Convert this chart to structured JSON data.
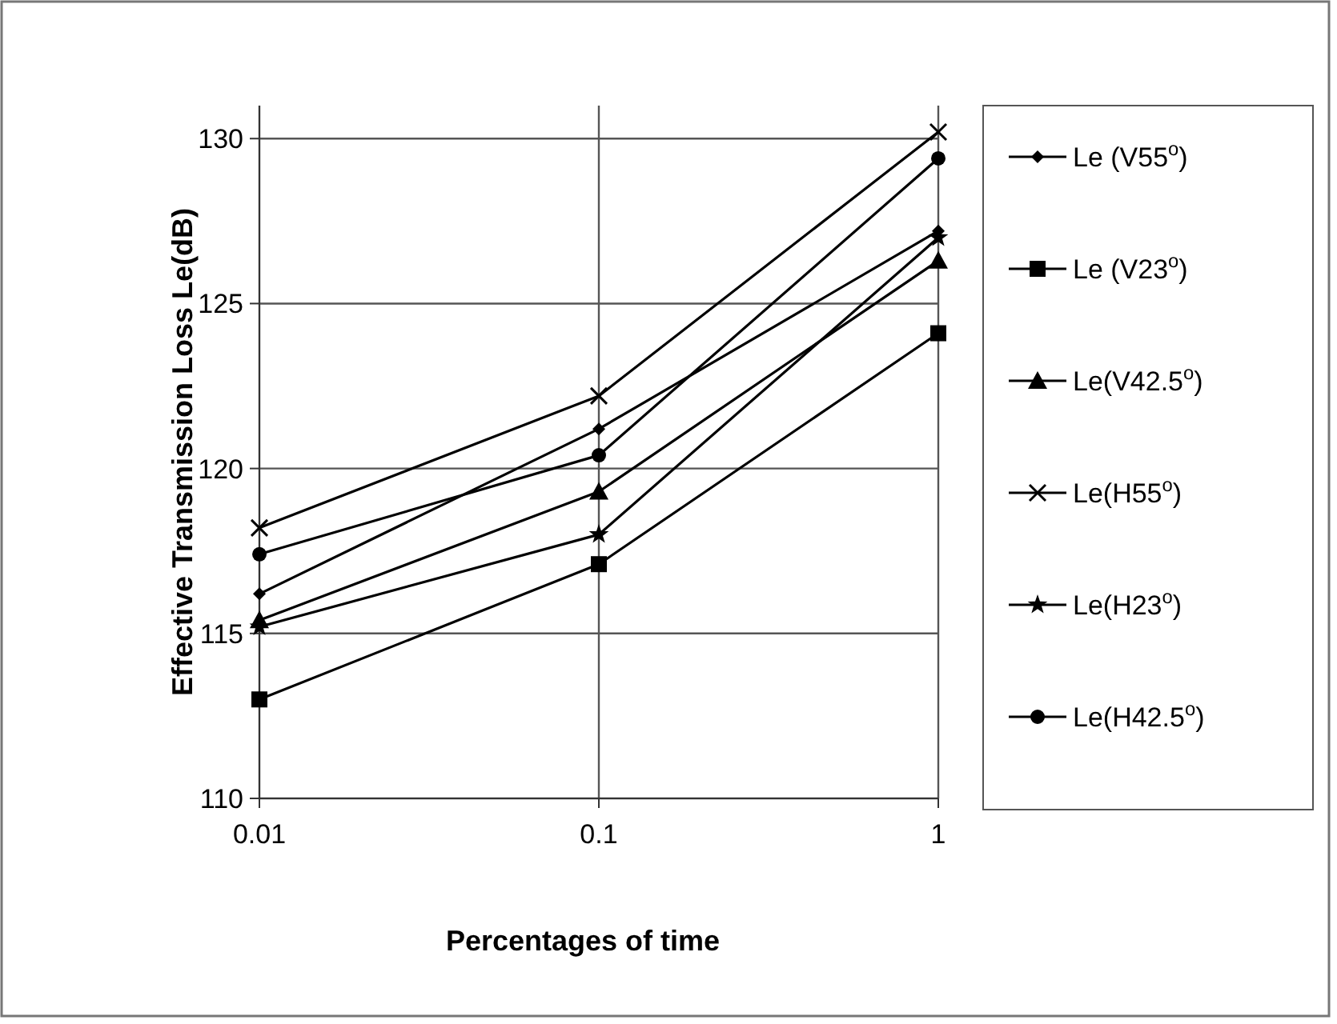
{
  "chart_data": {
    "type": "line",
    "xlabel": "Percentages of time",
    "ylabel": "Effective Transmission Loss Le(dB)",
    "log": "x",
    "x": [
      0.01,
      0.1,
      1
    ],
    "xlim": [
      0.01,
      1
    ],
    "xticks": [
      0.01,
      0.1,
      1
    ],
    "ylim": [
      110,
      131
    ],
    "yticks": [
      110,
      115,
      120,
      125,
      130
    ],
    "grid": true,
    "legend": "right",
    "series": [
      {
        "name": "Le (V55$^{o}$)",
        "color": "#000000",
        "marker": "diamond",
        "values": [
          116.2,
          121.2,
          127.2
        ]
      },
      {
        "name": "Le (V23$^{o}$)",
        "color": "#000000",
        "marker": "square",
        "values": [
          113.0,
          117.1,
          124.1
        ]
      },
      {
        "name": "Le(V42.5$^{o}$)",
        "color": "#000000",
        "marker": "triangle",
        "values": [
          115.4,
          119.3,
          126.3
        ]
      },
      {
        "name": "Le(H55$^{o}$)",
        "color": "#000000",
        "marker": "cross",
        "values": [
          118.2,
          122.2,
          130.2
        ]
      },
      {
        "name": "Le(H23$^{o}$)",
        "color": "#000000",
        "marker": "star",
        "values": [
          115.2,
          118.0,
          127.0
        ]
      },
      {
        "name": "Le(H42.5$^{o}$)",
        "color": "#000000",
        "marker": "circle",
        "values": [
          117.4,
          120.4,
          129.4
        ]
      }
    ]
  }
}
